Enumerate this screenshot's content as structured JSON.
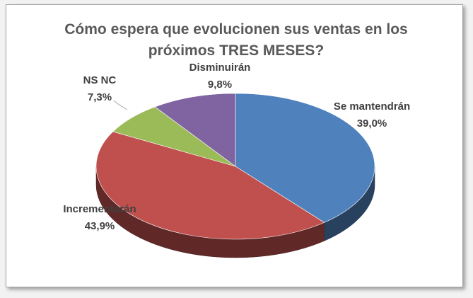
{
  "chart_data": {
    "type": "pie3d",
    "title": "Cómo espera que evolucionen sus ventas en los próximos TRES MESES?",
    "categories": [
      "Se mantendrán",
      "Incrementarán",
      "NS NC",
      "Disminuirán"
    ],
    "values": [
      39.0,
      43.9,
      7.3,
      9.8
    ],
    "value_labels": [
      "39,0%",
      "43,9%",
      "7,3%",
      "9,8%"
    ],
    "colors": [
      "#4f81bd",
      "#c0504d",
      "#9bbb59",
      "#8064a2"
    ]
  }
}
